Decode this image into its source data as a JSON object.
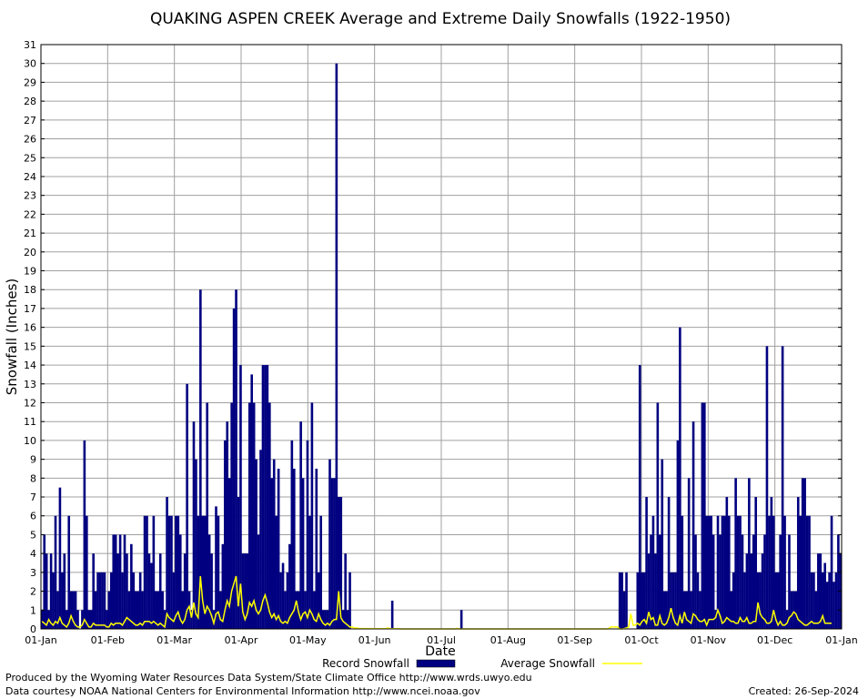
{
  "chart_data": {
    "type": "bar",
    "title": "QUAKING ASPEN CREEK Average and Extreme Daily Snowfalls (1922-1950)",
    "xlabel": "Date",
    "ylabel": "Snowfall (Inches)",
    "ylim": [
      0,
      31
    ],
    "yticks": [
      0,
      1,
      2,
      3,
      4,
      5,
      6,
      7,
      8,
      9,
      10,
      11,
      12,
      13,
      14,
      15,
      16,
      17,
      18,
      19,
      20,
      21,
      22,
      23,
      24,
      25,
      26,
      27,
      28,
      29,
      30,
      31
    ],
    "xticks": [
      "01-Jan",
      "01-Feb",
      "01-Mar",
      "01-Apr",
      "01-May",
      "01-Jun",
      "01-Jul",
      "01-Aug",
      "01-Sep",
      "01-Oct",
      "01-Nov",
      "01-Dec",
      "01-Jan"
    ],
    "grid": true,
    "legend_position": "bottom",
    "colors": {
      "record": "#000080",
      "average": "#ffff00",
      "grid": "#a0a0a0"
    },
    "series": [
      {
        "name": "Record Snowfall",
        "kind": "bar",
        "x_start": "01-Jan",
        "values": [
          1,
          5,
          4,
          1,
          4,
          3,
          6,
          2,
          7.5,
          3,
          4,
          1,
          6,
          2,
          2,
          2,
          1,
          0,
          1,
          10,
          6,
          1,
          1,
          4,
          2,
          3,
          3,
          3,
          3,
          1,
          2,
          3,
          5,
          5,
          4,
          5,
          3,
          5,
          4,
          2,
          4.5,
          3,
          2,
          2,
          3,
          2,
          6,
          6,
          4,
          3.5,
          6,
          2,
          2,
          4,
          2,
          1,
          7,
          6,
          6,
          3,
          6,
          6,
          5,
          2,
          4,
          13,
          2,
          1,
          11,
          9,
          6,
          18,
          6,
          6,
          12,
          5,
          4,
          1,
          6.5,
          6,
          2,
          4.5,
          10,
          11,
          8,
          12,
          17,
          18,
          7,
          14,
          4,
          4,
          4,
          12,
          13.5,
          12,
          9,
          5,
          9.5,
          14,
          14,
          14,
          12,
          8,
          9,
          6,
          8.5,
          3,
          3.5,
          2,
          3,
          4.5,
          10,
          8.5,
          2,
          2,
          11,
          8,
          2,
          10,
          6,
          12,
          2,
          8.5,
          3,
          6,
          1,
          1,
          1,
          9,
          8,
          8,
          30,
          7,
          7,
          1,
          4,
          1,
          3,
          0,
          0,
          0,
          0,
          0,
          0,
          0,
          0,
          0,
          0,
          0,
          0,
          0,
          0,
          0,
          0,
          0,
          0,
          1.5,
          0,
          0,
          0,
          0,
          0,
          0,
          0,
          0,
          0,
          0,
          0,
          0,
          0,
          0,
          0,
          0,
          0,
          0,
          0,
          0,
          0,
          0,
          0,
          0,
          0,
          0,
          0,
          0,
          0,
          0,
          1,
          0,
          0,
          0,
          0,
          0,
          0,
          0,
          0,
          0,
          0,
          0,
          0,
          0,
          0,
          0,
          0,
          0,
          0,
          0,
          0,
          0,
          0,
          0,
          0,
          0,
          0,
          0,
          0,
          0,
          0,
          0,
          0,
          0,
          0,
          0,
          0,
          0,
          0,
          0,
          0,
          0,
          0,
          0,
          0,
          0,
          0,
          0,
          0,
          0,
          0,
          0,
          0,
          0,
          0,
          0,
          0,
          0,
          0,
          0,
          0,
          0,
          0,
          0,
          0,
          0,
          0,
          0,
          0,
          0,
          0,
          3,
          3,
          2,
          3,
          0,
          0,
          0,
          0,
          3,
          14,
          3,
          3,
          7,
          4,
          5,
          6,
          4,
          12,
          5,
          9,
          2,
          2,
          7,
          3,
          3,
          3,
          10,
          16,
          6,
          2,
          2,
          8,
          2,
          11,
          5,
          3,
          2,
          12,
          12,
          6,
          6,
          6,
          5,
          1,
          6,
          5,
          6,
          6,
          7,
          6,
          2,
          3,
          8,
          6,
          6,
          5,
          3,
          4,
          8,
          4,
          5,
          7,
          3,
          3,
          4,
          5,
          15,
          6,
          7,
          6,
          3,
          3,
          5,
          15,
          6,
          1,
          5,
          2,
          2,
          2,
          7,
          6,
          8,
          8,
          6,
          6,
          3,
          3,
          2,
          4,
          4,
          3,
          3.5,
          2.5,
          3,
          6,
          2.5,
          3,
          5,
          4
        ]
      },
      {
        "name": "Average Snowfall",
        "kind": "line",
        "x_start": "01-Jan",
        "values": [
          0.4,
          0.3,
          0.2,
          0.5,
          0.3,
          0.2,
          0.4,
          0.3,
          0.6,
          0.3,
          0.2,
          0.1,
          0.3,
          0.7,
          0.4,
          0.2,
          0.1,
          0.1,
          0.2,
          0.5,
          0.3,
          0.1,
          0.1,
          0.3,
          0.2,
          0.2,
          0.2,
          0.2,
          0.2,
          0.1,
          0.1,
          0.3,
          0.2,
          0.3,
          0.3,
          0.3,
          0.2,
          0.4,
          0.6,
          0.5,
          0.4,
          0.3,
          0.2,
          0.2,
          0.3,
          0.2,
          0.4,
          0.4,
          0.4,
          0.3,
          0.4,
          0.3,
          0.2,
          0.3,
          0.2,
          0.1,
          0.8,
          0.6,
          0.5,
          0.4,
          0.7,
          0.9,
          0.5,
          0.3,
          0.5,
          1.0,
          1.2,
          0.6,
          1.4,
          0.8,
          0.6,
          2.8,
          1.5,
          0.8,
          1.2,
          1.0,
          0.7,
          0.3,
          0.8,
          0.9,
          0.5,
          0.4,
          1.0,
          1.5,
          1.2,
          2.0,
          2.4,
          2.8,
          1.2,
          2.4,
          0.9,
          0.5,
          0.8,
          1.4,
          1.2,
          1.5,
          1.0,
          0.8,
          1.0,
          1.5,
          1.8,
          1.4,
          0.9,
          0.6,
          0.8,
          0.5,
          0.7,
          0.4,
          0.3,
          0.4,
          0.3,
          0.6,
          0.8,
          1.0,
          1.5,
          0.9,
          0.5,
          0.8,
          0.9,
          0.6,
          1.0,
          0.8,
          0.5,
          0.4,
          0.8,
          0.5,
          0.3,
          0.2,
          0.3,
          0.2,
          0.4,
          0.5,
          0.5,
          2.0,
          0.6,
          0.4,
          0.3,
          0.2,
          0.1,
          0.1,
          0.05,
          0.05,
          0.03,
          0.02,
          0.02,
          0.02,
          0.02,
          0.02,
          0.01,
          0.01,
          0.01,
          0.01,
          0.01,
          0.01,
          0.01,
          0.05,
          0.01,
          0.01,
          0.01,
          0.01,
          0.01,
          0,
          0,
          0,
          0,
          0,
          0,
          0,
          0,
          0,
          0,
          0,
          0,
          0,
          0,
          0,
          0,
          0,
          0,
          0,
          0,
          0,
          0,
          0,
          0,
          0,
          0.03,
          0,
          0,
          0,
          0,
          0,
          0,
          0,
          0,
          0,
          0,
          0,
          0,
          0,
          0,
          0,
          0,
          0,
          0,
          0,
          0,
          0,
          0,
          0,
          0,
          0,
          0,
          0,
          0,
          0,
          0,
          0,
          0,
          0,
          0,
          0,
          0,
          0,
          0,
          0,
          0,
          0,
          0,
          0,
          0,
          0,
          0,
          0,
          0,
          0,
          0,
          0,
          0,
          0,
          0,
          0,
          0,
          0,
          0,
          0,
          0,
          0,
          0,
          0,
          0,
          0,
          0,
          0,
          0.02,
          0.1,
          0.1,
          0.1,
          0.1,
          0,
          0,
          0.02,
          0.05,
          0.1,
          0.8,
          0.2,
          0.2,
          0.3,
          0.2,
          0.4,
          0.5,
          0.3,
          0.9,
          0.5,
          0.6,
          0.2,
          0.2,
          0.7,
          0.3,
          0.2,
          0.3,
          0.6,
          1.1,
          0.6,
          0.3,
          0.2,
          0.7,
          0.3,
          0.9,
          0.5,
          0.4,
          0.3,
          0.8,
          0.7,
          0.5,
          0.4,
          0.4,
          0.5,
          0.2,
          0.5,
          0.5,
          0.5,
          0.6,
          1.0,
          0.7,
          0.3,
          0.4,
          0.6,
          0.5,
          0.4,
          0.4,
          0.3,
          0.3,
          0.6,
          0.4,
          0.4,
          0.6,
          0.3,
          0.3,
          0.4,
          0.4,
          1.4,
          0.8,
          0.6,
          0.5,
          0.3,
          0.3,
          0.4,
          1.0,
          0.5,
          0.2,
          0.4,
          0.2,
          0.2,
          0.3,
          0.6,
          0.7,
          0.9,
          0.8,
          0.5,
          0.4,
          0.3,
          0.2,
          0.2,
          0.3,
          0.4,
          0.3,
          0.3,
          0.3,
          0.4,
          0.7,
          0.3,
          0.3,
          0.3,
          0.3
        ]
      }
    ],
    "legend": {
      "record_label": "Record Snowfall",
      "average_label": "Average Snowfall"
    }
  },
  "footer": {
    "produced_by": "Produced by the Wyoming Water Resources Data System/State Climate Office http://www.wrds.uwyo.edu",
    "courtesy": "Data courtesy NOAA National Centers for Environmental Information http://www.ncei.noaa.gov",
    "created": "Created:  26-Sep-2024"
  }
}
